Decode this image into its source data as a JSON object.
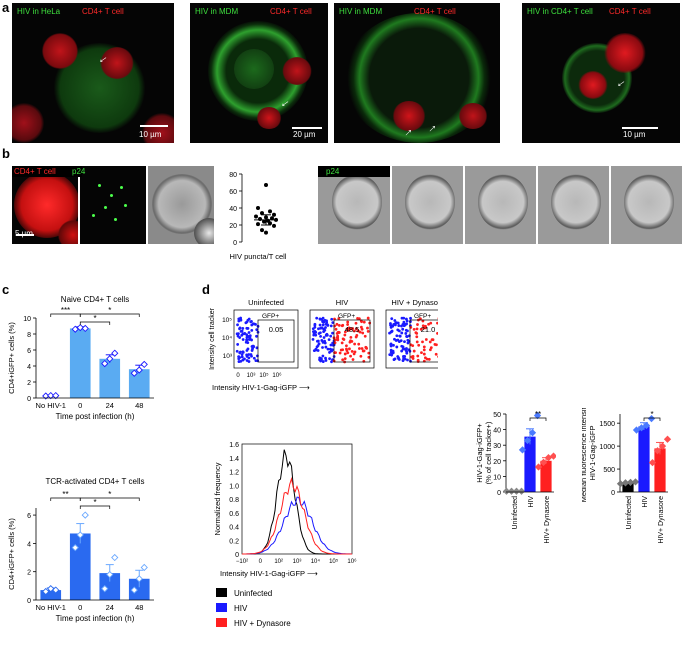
{
  "panel_letters": {
    "a": "a",
    "b": "b",
    "c": "c",
    "d": "d"
  },
  "panel_a": {
    "images": [
      {
        "label_green": "HIV in HeLa",
        "label_red": "CD4+ T cell",
        "scale": "10 µm"
      },
      {
        "label_green": "HIV in MDM",
        "label_red": "CD4+ T cell",
        "scale": "20 µm"
      },
      {
        "label_green": "HIV in MDM",
        "label_red": "CD4+ T cell",
        "scale": ""
      },
      {
        "label_green": "HIV in CD4+ T cell",
        "label_red": "CD4+ T cell",
        "scale": "10 µm"
      }
    ]
  },
  "panel_b": {
    "label_red": "CD4+ T cell",
    "label_green": "p24",
    "scale": "5 µm",
    "timelapse_label": "p24",
    "dot_plot": {
      "ylabel": "",
      "xlabel": "HIV puncta/T cell",
      "yticks": [
        "0",
        "20",
        "40",
        "60",
        "80"
      ],
      "values": [
        67,
        40,
        36,
        34,
        32,
        30,
        29,
        28,
        27,
        26,
        25,
        24,
        22,
        21,
        19,
        14,
        11
      ],
      "mean": 26,
      "sem_low": 20,
      "sem_high": 32
    }
  },
  "panel_c_top": {
    "title": "Naive CD4+ T cells",
    "ylabel": "CD4+iGFP+ cells (%)",
    "xlabel": "Time post infection (h)",
    "categories": [
      "No HIV-1",
      "0",
      "24",
      "48"
    ],
    "yticks": [
      "0",
      "2",
      "4",
      "6",
      "8",
      "10"
    ],
    "sig": [
      "***",
      "*",
      "*"
    ]
  },
  "panel_c_bottom": {
    "title": "TCR-activated CD4+ T cells",
    "ylabel": "CD4+iGFP+ cells (%)",
    "xlabel": "Time post infection (h)",
    "categories": [
      "No HIV-1",
      "0",
      "24",
      "48"
    ],
    "yticks": [
      "0",
      "2",
      "4",
      "6"
    ],
    "sig": [
      "**",
      "*",
      "*"
    ]
  },
  "panel_d_flow": {
    "titles": [
      "Uninfected",
      "HIV",
      "HIV + Dynasore"
    ],
    "gate_label": "GFP+",
    "gate_values": [
      "0.05",
      "48.5",
      "21.0"
    ],
    "ylabel": "Intensity cell tracker",
    "xlabel": "Intensity HIV-1-Gag-iGFP",
    "yticks": [
      "10⁵",
      "10⁴",
      "10³"
    ],
    "xticks": [
      "0",
      "10³",
      "10⁵",
      "10⁶"
    ]
  },
  "panel_d_hist": {
    "ylabel": "Normalized frequency",
    "xlabel": "Intensity HIV-1-Gag-iGFP",
    "yticks": [
      "0",
      "0.2",
      "0.4",
      "0.6",
      "0.8",
      "1.0",
      "1.2",
      "1.4",
      "1.6"
    ],
    "xticks": [
      "−10²",
      "0",
      "10²",
      "10³",
      "10⁴",
      "10⁵",
      "10⁶"
    ],
    "legend": [
      "Uninfected",
      "HIV",
      "HIV + Dynasore"
    ]
  },
  "panel_d_bar1": {
    "ylabel": "HIV-1-Gag-iGFP+ (% of cell tracker+)",
    "yticks": [
      "0",
      "10",
      "20",
      "30",
      "40",
      "50"
    ],
    "categories": [
      "Uninfected",
      "HIV",
      "HIV+ Dynasore"
    ],
    "sig": "**"
  },
  "panel_d_bar2": {
    "ylabel": "Median fluorescence intensity HIV-1-Gag-iGFP",
    "yticks": [
      "0",
      "500",
      "1000",
      "1500"
    ],
    "categories": [
      "Uninfected",
      "HIV",
      "HIV+ Dynasore"
    ],
    "sig": "*"
  },
  "colors": {
    "green": "#3ee03e",
    "red": "#ff2a2a",
    "blue": "#1a1aff",
    "bar_light": "#5aabf2"
  },
  "chart_data": [
    {
      "type": "bar",
      "title": "Naive CD4+ T cells",
      "xlabel": "Time post infection (h)",
      "ylabel": "CD4+iGFP+ cells (%)",
      "categories": [
        "No HIV-1",
        "0",
        "24",
        "48"
      ],
      "values": [
        0.3,
        8.7,
        4.9,
        3.6
      ],
      "sem": [
        0.05,
        0.2,
        0.5,
        0.5
      ],
      "points": [
        [
          0.25,
          0.3,
          0.3
        ],
        [
          8.6,
          8.8,
          8.7
        ],
        [
          4.3,
          4.9,
          5.6
        ],
        [
          3.1,
          3.5,
          4.2
        ]
      ],
      "ylim": [
        0,
        10
      ]
    },
    {
      "type": "bar",
      "title": "TCR-activated CD4+ T cells",
      "xlabel": "Time post infection (h)",
      "ylabel": "CD4+iGFP+ cells (%)",
      "categories": [
        "No HIV-1",
        "0",
        "24",
        "48"
      ],
      "values": [
        0.7,
        4.7,
        1.9,
        1.5
      ],
      "sem": [
        0.15,
        0.7,
        0.6,
        0.6
      ],
      "points": [
        [
          0.6,
          0.8,
          0.7
        ],
        [
          3.7,
          4.6,
          6.0
        ],
        [
          0.8,
          1.8,
          3.0
        ],
        [
          0.7,
          1.5,
          2.3
        ]
      ],
      "ylim": [
        0,
        6.5
      ]
    },
    {
      "type": "bar",
      "title": "",
      "xlabel": "",
      "ylabel": "HIV-1-Gag-iGFP+ (% of cell tracker+)",
      "categories": [
        "Uninfected",
        "HIV",
        "HIV+ Dynasore"
      ],
      "values": [
        0.5,
        35.5,
        20
      ],
      "sem": [
        0.1,
        5,
        2
      ],
      "points": [
        [
          0.5,
          0.5,
          0.5,
          0.5
        ],
        [
          27,
          33,
          38,
          49
        ],
        [
          16,
          19,
          22,
          23
        ]
      ],
      "ylim": [
        0,
        50
      ]
    },
    {
      "type": "bar",
      "title": "",
      "xlabel": "",
      "ylabel": "Median fluorescence intensity HIV-1-Gag-iGFP",
      "categories": [
        "Uninfected",
        "HIV",
        "HIV+ Dynasore"
      ],
      "values": [
        200,
        1430,
        950
      ],
      "sem": [
        20,
        80,
        130
      ],
      "points": [
        [
          180,
          200,
          210,
          220
        ],
        [
          1350,
          1400,
          1450,
          1600
        ],
        [
          640,
          900,
          1000,
          1150
        ]
      ],
      "ylim": [
        0,
        1700
      ]
    },
    {
      "type": "scatter",
      "title": "",
      "xlabel": "HIV puncta/T cell",
      "ylabel": "",
      "values": [
        67,
        40,
        36,
        34,
        32,
        30,
        29,
        28,
        27,
        26,
        25,
        24,
        22,
        21,
        19,
        14,
        11
      ],
      "ylim": [
        0,
        80
      ]
    }
  ]
}
